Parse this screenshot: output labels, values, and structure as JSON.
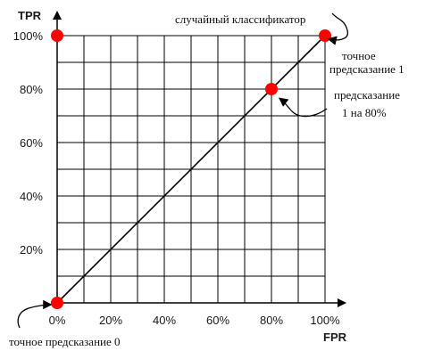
{
  "chart_data": {
    "type": "scatter",
    "xlabel": "FPR",
    "ylabel": "TPR",
    "xlim": [
      0,
      100
    ],
    "ylim": [
      0,
      100
    ],
    "grid": true,
    "grid_step": 10,
    "x_ticks": [
      0,
      20,
      40,
      60,
      80,
      100
    ],
    "y_ticks": [
      20,
      40,
      60,
      80,
      100
    ],
    "x_tick_labels": [
      "0%",
      "20%",
      "40%",
      "60%",
      "80%",
      "100%"
    ],
    "y_tick_labels": [
      "20%",
      "40%",
      "60%",
      "80%",
      "100%"
    ],
    "diagonal_line": {
      "from": [
        0,
        0
      ],
      "to": [
        100,
        100
      ]
    },
    "points": [
      {
        "x": 0,
        "y": 0
      },
      {
        "x": 0,
        "y": 100
      },
      {
        "x": 100,
        "y": 100
      },
      {
        "x": 80,
        "y": 80
      }
    ],
    "point_color": "#ff0000",
    "annotations": {
      "diagonal": "случайный классификатор",
      "perfect_1_line1": "точное",
      "perfect_1_line2": "предсказание 1",
      "pred80_line1": "предсказание",
      "pred80_line2": "1 на 80%",
      "perfect_0": "точное предсказание 0"
    }
  }
}
